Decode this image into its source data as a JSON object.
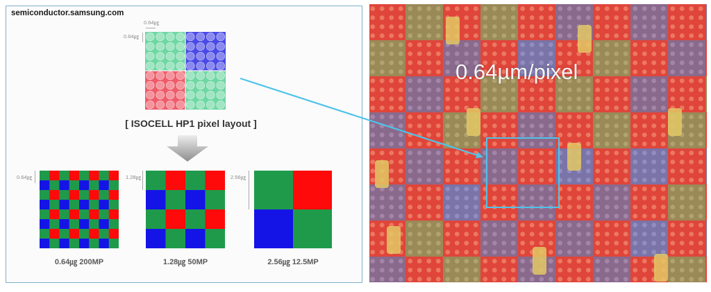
{
  "source_label": "semiconductor.samsung.com",
  "top_dim_width": "0.64㎍",
  "top_dim_height": "0.64㎍",
  "layout_title": "[ ISOCELL HP1 pixel layout ]",
  "grids": [
    {
      "dim": "0.64㎍",
      "caption": "0.64㎍ 200MP"
    },
    {
      "dim": "1.28㎍",
      "caption": "1.28㎍ 50MP"
    },
    {
      "dim": "2.56㎍",
      "caption": "2.56㎍ 12.5MP"
    }
  ],
  "micrograph_label": "0.64µm/pixel",
  "colors": {
    "green": "#1f9a4b",
    "blue": "#1414e6",
    "red": "#ff0a0a",
    "light_green": "#6fd7a3",
    "light_blue": "#4a4ae6",
    "light_red": "#ee5c6a",
    "pointer": "#4fc3ea",
    "panel_border": "#7fb0c9"
  },
  "icons": {
    "arrow": "down-arrow-icon",
    "pointer": "pointer-arrow-icon"
  }
}
